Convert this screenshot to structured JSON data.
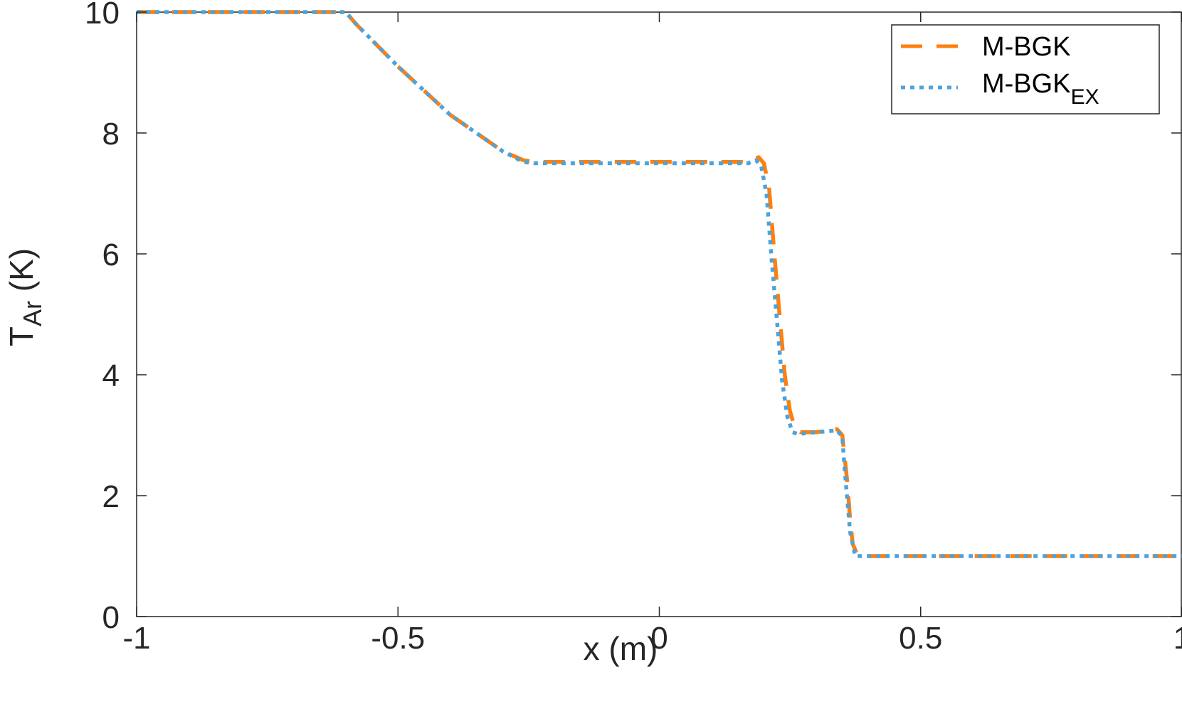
{
  "chart_data": {
    "type": "line",
    "title": "",
    "xlabel": "x (m)",
    "ylabel_main": "T",
    "ylabel_sub": "Ar",
    "ylabel_unit": " (K)",
    "xlim": [
      -1,
      1
    ],
    "ylim": [
      0,
      10
    ],
    "xticks": [
      -1,
      -0.5,
      0,
      0.5,
      1
    ],
    "xtick_labels": [
      "-1",
      "-0.5",
      "0",
      "0.5",
      "1"
    ],
    "yticks": [
      0,
      2,
      4,
      6,
      8,
      10
    ],
    "ytick_labels": [
      "0",
      "2",
      "4",
      "6",
      "8",
      "10"
    ],
    "grid": false,
    "legend_position": "top-right",
    "series": [
      {
        "name": "M-BGK",
        "name_sub": "",
        "color": "#ff7f0e",
        "style": "dashed",
        "x": [
          -1,
          -0.6,
          -0.58,
          -0.5,
          -0.4,
          -0.3,
          -0.26,
          -0.24,
          -0.2,
          0,
          0.1,
          0.17,
          0.19,
          0.2,
          0.21,
          0.22,
          0.23,
          0.24,
          0.25,
          0.26,
          0.27,
          0.3,
          0.34,
          0.35,
          0.36,
          0.365,
          0.37,
          0.38,
          0.4,
          0.6,
          1
        ],
        "y": [
          10,
          10,
          9.8,
          9.1,
          8.3,
          7.7,
          7.55,
          7.52,
          7.52,
          7.52,
          7.52,
          7.52,
          7.6,
          7.5,
          7.1,
          6.0,
          5.0,
          4.0,
          3.4,
          3.1,
          3.05,
          3.05,
          3.1,
          3.0,
          2.2,
          1.6,
          1.2,
          1.0,
          1.0,
          1.0,
          1.0
        ]
      },
      {
        "name": "M-BGK",
        "name_sub": "EX",
        "color": "#4da3db",
        "style": "dotted",
        "x": [
          -1,
          -0.6,
          -0.58,
          -0.5,
          -0.4,
          -0.3,
          -0.26,
          -0.24,
          -0.2,
          0,
          0.1,
          0.17,
          0.185,
          0.195,
          0.205,
          0.215,
          0.225,
          0.235,
          0.245,
          0.255,
          0.265,
          0.3,
          0.34,
          0.35,
          0.355,
          0.36,
          0.365,
          0.375,
          0.4,
          0.6,
          1
        ],
        "y": [
          10,
          10,
          9.8,
          9.1,
          8.3,
          7.7,
          7.52,
          7.5,
          7.5,
          7.5,
          7.5,
          7.5,
          7.55,
          7.45,
          7.0,
          5.9,
          4.9,
          3.9,
          3.3,
          3.05,
          3.02,
          3.05,
          3.08,
          2.98,
          2.4,
          1.9,
          1.4,
          1.0,
          1.0,
          1.0,
          1.0
        ]
      }
    ]
  }
}
